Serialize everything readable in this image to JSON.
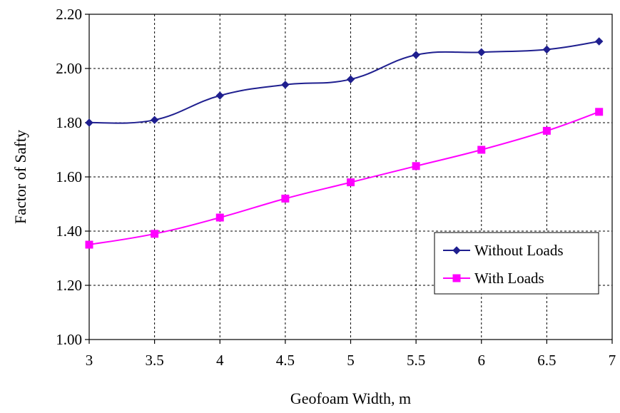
{
  "chart_data": {
    "type": "line",
    "title": "",
    "xlabel": "Geofoam Width, m",
    "ylabel": "Factor of Safty",
    "xlim": [
      3,
      7
    ],
    "ylim": [
      1.0,
      2.2
    ],
    "x_ticks": [
      "3",
      "3.5",
      "4",
      "4.5",
      "5",
      "5.5",
      "6",
      "6.5",
      "7"
    ],
    "y_ticks": [
      "1.00",
      "1.20",
      "1.40",
      "1.60",
      "1.80",
      "2.00",
      "2.20"
    ],
    "grid": true,
    "legend_position": "bottom-right",
    "series": [
      {
        "name": "Without Loads",
        "color": "#1f1f8f",
        "marker": "diamond",
        "smooth": true,
        "x": [
          3,
          3.5,
          4,
          4.5,
          5,
          5.5,
          6,
          6.5,
          6.9
        ],
        "y": [
          1.8,
          1.81,
          1.9,
          1.94,
          1.96,
          2.05,
          2.06,
          2.07,
          2.1
        ]
      },
      {
        "name": "With Loads",
        "color": "#ff00ff",
        "marker": "square",
        "smooth": true,
        "x": [
          3,
          3.5,
          4,
          4.5,
          5,
          5.5,
          6,
          6.5,
          6.9
        ],
        "y": [
          1.35,
          1.39,
          1.45,
          1.52,
          1.58,
          1.64,
          1.7,
          1.77,
          1.84
        ]
      }
    ]
  }
}
